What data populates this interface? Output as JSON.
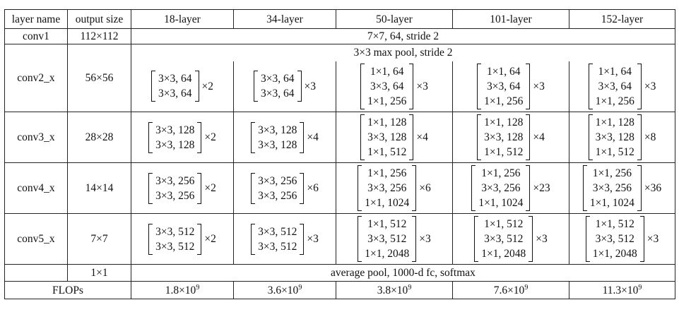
{
  "table": {
    "header": [
      "layer name",
      "output size",
      "18-layer",
      "34-layer",
      "50-layer",
      "101-layer",
      "152-layer"
    ],
    "conv1": {
      "name": "conv1",
      "output": "112×112",
      "spec": "7×7, 64, stride 2"
    },
    "stages": [
      {
        "name": "conv2_x",
        "output": "56×56",
        "prefix": "3×3 max pool, stride 2",
        "cells": [
          {
            "lines": [
              "3×3, 64",
              "3×3, 64"
            ],
            "times": "×2"
          },
          {
            "lines": [
              "3×3, 64",
              "3×3, 64"
            ],
            "times": "×3"
          },
          {
            "lines": [
              "1×1, 64",
              "3×3, 64",
              "1×1, 256"
            ],
            "times": "×3"
          },
          {
            "lines": [
              "1×1, 64",
              "3×3, 64",
              "1×1, 256"
            ],
            "times": "×3"
          },
          {
            "lines": [
              "1×1, 64",
              "3×3, 64",
              "1×1, 256"
            ],
            "times": "×3"
          }
        ]
      },
      {
        "name": "conv3_x",
        "output": "28×28",
        "cells": [
          {
            "lines": [
              "3×3, 128",
              "3×3, 128"
            ],
            "times": "×2"
          },
          {
            "lines": [
              "3×3, 128",
              "3×3, 128"
            ],
            "times": "×4"
          },
          {
            "lines": [
              "1×1, 128",
              "3×3, 128",
              "1×1, 512"
            ],
            "times": "×4"
          },
          {
            "lines": [
              "1×1, 128",
              "3×3, 128",
              "1×1, 512"
            ],
            "times": "×4"
          },
          {
            "lines": [
              "1×1, 128",
              "3×3, 128",
              "1×1, 512"
            ],
            "times": "×8"
          }
        ]
      },
      {
        "name": "conv4_x",
        "output": "14×14",
        "cells": [
          {
            "lines": [
              "3×3, 256",
              "3×3, 256"
            ],
            "times": "×2"
          },
          {
            "lines": [
              "3×3, 256",
              "3×3, 256"
            ],
            "times": "×6"
          },
          {
            "lines": [
              "1×1, 256",
              "3×3, 256",
              "1×1, 1024"
            ],
            "times": "×6"
          },
          {
            "lines": [
              "1×1, 256",
              "3×3, 256",
              "1×1, 1024"
            ],
            "times": "×23"
          },
          {
            "lines": [
              "1×1, 256",
              "3×3, 256",
              "1×1, 1024"
            ],
            "times": "×36"
          }
        ]
      },
      {
        "name": "conv5_x",
        "output": "7×7",
        "cells": [
          {
            "lines": [
              "3×3, 512",
              "3×3, 512"
            ],
            "times": "×2"
          },
          {
            "lines": [
              "3×3, 512",
              "3×3, 512"
            ],
            "times": "×3"
          },
          {
            "lines": [
              "1×1, 512",
              "3×3, 512",
              "1×1, 2048"
            ],
            "times": "×3"
          },
          {
            "lines": [
              "1×1, 512",
              "3×3, 512",
              "1×1, 2048"
            ],
            "times": "×3"
          },
          {
            "lines": [
              "1×1, 512",
              "3×3, 512",
              "1×1, 2048"
            ],
            "times": "×3"
          }
        ]
      }
    ],
    "final": {
      "output": "1×1",
      "spec": "average pool, 1000-d fc, softmax"
    },
    "flops": {
      "label": "FLOPs",
      "values": [
        {
          "base": "1.8×10",
          "exp": "9"
        },
        {
          "base": "3.6×10",
          "exp": "9"
        },
        {
          "base": "3.8×10",
          "exp": "9"
        },
        {
          "base": "7.6×10",
          "exp": "9"
        },
        {
          "base": "11.3×10",
          "exp": "9"
        }
      ]
    }
  }
}
